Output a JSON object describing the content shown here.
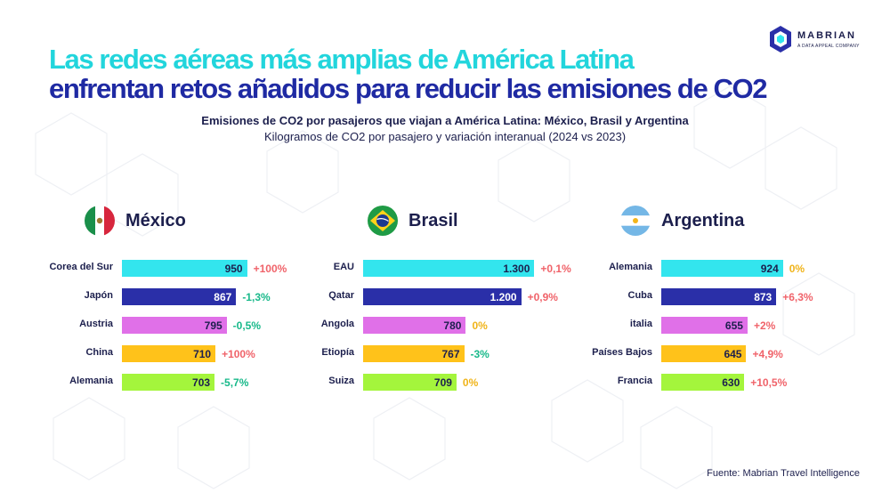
{
  "header": {
    "title_line1": "Las redes aéreas más amplias de América Latina",
    "title_line2": "enfrentan retos añadidos para reducir las emisiones de CO2",
    "logo_word": "MABRIAN",
    "logo_sub": "A DATA APPEAL COMPANY"
  },
  "subtitle": "Emisiones de CO2 por pasajeros que viajan a América Latina: México, Brasil y Argentina",
  "subtitle2": "Kilogramos de CO2 por pasajero y variación interanual (2024 vs 2023)",
  "source": "Fuente: Mabrian Travel Intelligence",
  "colors": {
    "bars": [
      "#33e5ee",
      "#2a2fa8",
      "#e070e8",
      "#ffc21a",
      "#a4f53c"
    ],
    "positive": "#f0636a",
    "negative": "#18b98a",
    "zero": "#f0b41a"
  },
  "chart_data": [
    {
      "type": "bar",
      "title": "México",
      "flag": "mexico-flag",
      "categories": [
        "Corea del Sur",
        "Japón",
        "Austria",
        "China",
        "Alemania"
      ],
      "values": [
        950,
        867,
        795,
        710,
        703
      ],
      "value_labels": [
        "950",
        "867",
        "795",
        "710",
        "703"
      ],
      "changes": [
        "+100%",
        "-1,3%",
        "-0,5%",
        "+100%",
        "-5,7%"
      ]
    },
    {
      "type": "bar",
      "title": "Brasil",
      "flag": "brazil-flag",
      "categories": [
        "EAU",
        "Qatar",
        "Angola",
        "Etiopía",
        "Suiza"
      ],
      "values": [
        1300,
        1200,
        780,
        767,
        709
      ],
      "value_labels": [
        "1.300",
        "1.200",
        "780",
        "767",
        "709"
      ],
      "changes": [
        "+0,1%",
        "+0,9%",
        "0%",
        "-3%",
        "0%"
      ]
    },
    {
      "type": "bar",
      "title": "Argentina",
      "flag": "argentina-flag",
      "categories": [
        "Alemania",
        "Cuba",
        "italia",
        "Países Bajos",
        "Francia"
      ],
      "values": [
        924,
        873,
        655,
        645,
        630
      ],
      "value_labels": [
        "924",
        "873",
        "655",
        "645",
        "630"
      ],
      "changes": [
        "0%",
        "+6,3%",
        "+2%",
        "+4,9%",
        "+10,5%"
      ]
    }
  ]
}
